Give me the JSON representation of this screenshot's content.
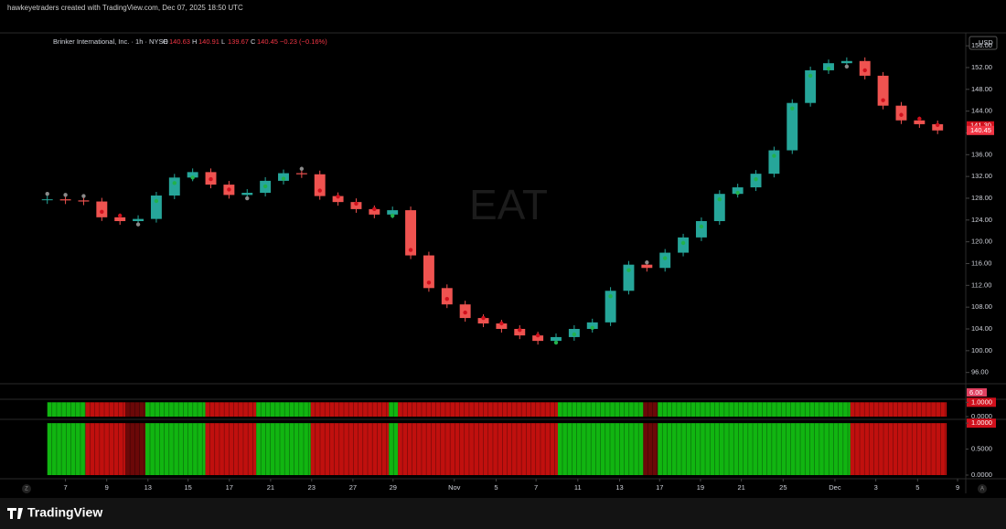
{
  "header": {
    "credit": "hawkeyetraders created with TradingView.com, Dec 07, 2025 18:50 UTC"
  },
  "chart_data": {
    "type": "candlestick",
    "title": "Brinker International, Inc. · 1h · NYSE",
    "ohlc": [
      {
        "label": "O",
        "value": "140.63"
      },
      {
        "label": "H",
        "value": "140.91"
      },
      {
        "label": "L",
        "value": "139.67"
      },
      {
        "label": "C",
        "value": "140.45"
      }
    ],
    "change": "−0.23 (−0.16%)",
    "watermark": "EAT",
    "currency": "USD",
    "values": [
      127.8,
      127.6,
      127.4,
      124.5,
      123.8,
      124.2,
      128.5,
      131.8,
      132.8,
      130.5,
      128.6,
      129.0,
      131.2,
      132.6,
      132.4,
      128.4,
      127.3,
      126.0,
      125.0,
      125.8,
      117.5,
      111.5,
      108.5,
      106.0,
      105.0,
      104.0,
      102.8,
      101.8,
      102.5,
      104.0,
      105.2,
      111.0,
      115.8,
      115.2,
      118.0,
      120.8,
      123.8,
      128.8,
      130.0,
      132.5,
      136.8,
      145.5,
      151.5,
      152.8,
      153.2,
      150.5,
      145.0,
      142.3,
      141.6,
      140.45
    ],
    "up_color": "#26a69a",
    "down_color": "#ef5350",
    "dot_colors": {
      "up": "#22b14c",
      "down": "#d0101c",
      "flat": "#8a8a8a"
    },
    "xlim": [
      -2.1,
      50.5
    ],
    "xticks": [
      {
        "value": 1.0,
        "label": "7"
      },
      {
        "value": 3.27,
        "label": "9"
      },
      {
        "value": 5.54,
        "label": "13"
      },
      {
        "value": 7.75,
        "label": "15"
      },
      {
        "value": 10.02,
        "label": "17"
      },
      {
        "value": 12.29,
        "label": "21"
      },
      {
        "value": 14.55,
        "label": "23"
      },
      {
        "value": 16.82,
        "label": "27"
      },
      {
        "value": 19.03,
        "label": "29"
      },
      {
        "value": 22.4,
        "label": "Nov"
      },
      {
        "value": 24.7,
        "label": "5"
      },
      {
        "value": 26.9,
        "label": "7"
      },
      {
        "value": 29.2,
        "label": "11"
      },
      {
        "value": 31.5,
        "label": "13"
      },
      {
        "value": 33.7,
        "label": "17"
      },
      {
        "value": 35.95,
        "label": "19"
      },
      {
        "value": 38.2,
        "label": "21"
      },
      {
        "value": 40.5,
        "label": "25"
      },
      {
        "value": 43.35,
        "label": "Dec"
      },
      {
        "value": 45.6,
        "label": "3"
      },
      {
        "value": 47.9,
        "label": "5"
      },
      {
        "value": 50.1,
        "label": "9"
      }
    ],
    "ylim": [
      94.1,
      158.2
    ],
    "yticks": [
      {
        "value": 96,
        "label": "96.00"
      },
      {
        "value": 100,
        "label": "100.00"
      },
      {
        "value": 104,
        "label": "104.00"
      },
      {
        "value": 108,
        "label": "108.00"
      },
      {
        "value": 112,
        "label": "112.00"
      },
      {
        "value": 116,
        "label": "116.00"
      },
      {
        "value": 120,
        "label": "120.00"
      },
      {
        "value": 124,
        "label": "124.00"
      },
      {
        "value": 128,
        "label": "128.00"
      },
      {
        "value": 132,
        "label": "132.00"
      },
      {
        "value": 136,
        "label": "136.00"
      },
      {
        "value": 140,
        "label": "140.00"
      },
      {
        "value": 144,
        "label": "144.00"
      },
      {
        "value": 148,
        "label": "148.00"
      },
      {
        "value": 152,
        "label": "152.00"
      },
      {
        "value": 156,
        "label": "156.00"
      }
    ],
    "price_tags": [
      {
        "value": 141.3,
        "label": "141.30",
        "color": "#d0101c"
      },
      {
        "value": 140.45,
        "label": "140.45",
        "color": "#f23645"
      }
    ],
    "indicator_label": {
      "value": 6,
      "label": "6.00"
    },
    "pane1_ticks": [
      {
        "value": 1,
        "label": "1.0000"
      },
      {
        "value": 0,
        "label": "0.0000"
      }
    ],
    "pane2_ylim": [
      0,
      1.02
    ],
    "pane2_ticks": [
      {
        "value": 1,
        "label": "1.0000"
      },
      {
        "value": 0.5,
        "label": "0.5000"
      },
      {
        "value": 0,
        "label": "0.0000"
      }
    ],
    "regimes": [
      {
        "start": 0,
        "end": 2.1,
        "value": 1,
        "color": "#11b511"
      },
      {
        "start": 2.1,
        "end": 4.3,
        "value": 1,
        "color": "#c0100e"
      },
      {
        "start": 4.3,
        "end": 5.4,
        "value": 1,
        "color": "#6b0808"
      },
      {
        "start": 5.4,
        "end": 8.7,
        "value": 1,
        "color": "#11b511"
      },
      {
        "start": 8.7,
        "end": 11.5,
        "value": 1,
        "color": "#c0100e"
      },
      {
        "start": 11.5,
        "end": 14.5,
        "value": 1,
        "color": "#11b511"
      },
      {
        "start": 14.5,
        "end": 18.8,
        "value": 1,
        "color": "#c0100e"
      },
      {
        "start": 18.8,
        "end": 19.3,
        "value": 1,
        "color": "#11b511"
      },
      {
        "start": 19.3,
        "end": 28.1,
        "value": 1,
        "color": "#c0100e"
      },
      {
        "start": 28.1,
        "end": 32.8,
        "value": 1,
        "color": "#11b511"
      },
      {
        "start": 32.8,
        "end": 33.6,
        "value": 1,
        "color": "#6b0808"
      },
      {
        "start": 33.6,
        "end": 44.2,
        "value": 1,
        "color": "#11b511"
      },
      {
        "start": 44.2,
        "end": 49.5,
        "value": 1,
        "color": "#c0100e"
      }
    ]
  },
  "footer": {
    "brand": "TradingView",
    "left_button": "Z",
    "right_button": "A"
  }
}
